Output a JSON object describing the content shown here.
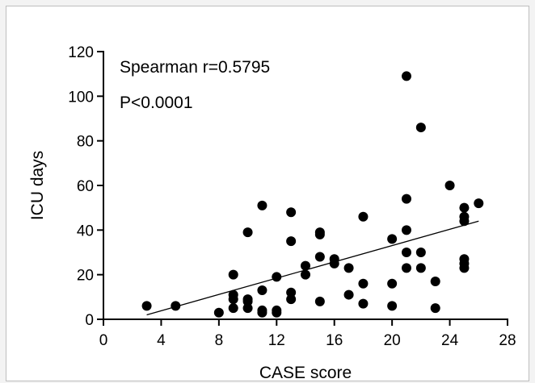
{
  "chart_data": {
    "type": "scatter",
    "xlabel": "CASE score",
    "ylabel": "ICU days",
    "xlim": [
      0,
      28
    ],
    "ylim": [
      0,
      120
    ],
    "xticks": [
      0,
      4,
      8,
      12,
      16,
      20,
      24,
      28
    ],
    "yticks": [
      0,
      20,
      40,
      60,
      80,
      100,
      120
    ],
    "grid": false,
    "annotations": [
      "Spearman r=0.5795",
      "P<0.0001"
    ],
    "trendline": {
      "x": [
        3,
        26
      ],
      "y": [
        2,
        44
      ]
    },
    "points": [
      {
        "x": 3,
        "y": 6
      },
      {
        "x": 5,
        "y": 6
      },
      {
        "x": 8,
        "y": 3
      },
      {
        "x": 9,
        "y": 20
      },
      {
        "x": 9,
        "y": 11
      },
      {
        "x": 9,
        "y": 9
      },
      {
        "x": 9,
        "y": 5
      },
      {
        "x": 10,
        "y": 39
      },
      {
        "x": 10,
        "y": 9
      },
      {
        "x": 10,
        "y": 8
      },
      {
        "x": 10,
        "y": 5
      },
      {
        "x": 11,
        "y": 51
      },
      {
        "x": 11,
        "y": 13
      },
      {
        "x": 11,
        "y": 4
      },
      {
        "x": 11,
        "y": 3
      },
      {
        "x": 12,
        "y": 19
      },
      {
        "x": 12,
        "y": 4
      },
      {
        "x": 12,
        "y": 3
      },
      {
        "x": 13,
        "y": 48
      },
      {
        "x": 13,
        "y": 35
      },
      {
        "x": 13,
        "y": 12
      },
      {
        "x": 13,
        "y": 9
      },
      {
        "x": 14,
        "y": 24
      },
      {
        "x": 14,
        "y": 20
      },
      {
        "x": 15,
        "y": 39
      },
      {
        "x": 15,
        "y": 38
      },
      {
        "x": 15,
        "y": 28
      },
      {
        "x": 15,
        "y": 8
      },
      {
        "x": 16,
        "y": 27
      },
      {
        "x": 16,
        "y": 25
      },
      {
        "x": 17,
        "y": 23
      },
      {
        "x": 17,
        "y": 11
      },
      {
        "x": 18,
        "y": 46
      },
      {
        "x": 18,
        "y": 16
      },
      {
        "x": 18,
        "y": 7
      },
      {
        "x": 20,
        "y": 36
      },
      {
        "x": 20,
        "y": 16
      },
      {
        "x": 20,
        "y": 6
      },
      {
        "x": 21,
        "y": 109
      },
      {
        "x": 21,
        "y": 54
      },
      {
        "x": 21,
        "y": 40
      },
      {
        "x": 21,
        "y": 30
      },
      {
        "x": 21,
        "y": 23
      },
      {
        "x": 22,
        "y": 86
      },
      {
        "x": 22,
        "y": 30
      },
      {
        "x": 22,
        "y": 23
      },
      {
        "x": 23,
        "y": 17
      },
      {
        "x": 23,
        "y": 5
      },
      {
        "x": 24,
        "y": 60
      },
      {
        "x": 25,
        "y": 50
      },
      {
        "x": 25,
        "y": 46
      },
      {
        "x": 25,
        "y": 44
      },
      {
        "x": 25,
        "y": 27
      },
      {
        "x": 25,
        "y": 25
      },
      {
        "x": 25,
        "y": 23
      },
      {
        "x": 26,
        "y": 52
      }
    ]
  },
  "colors": {
    "background": "#f3f3f3",
    "frame": "#bdbdbd",
    "panel": "#ffffff",
    "ink": "#000000"
  }
}
